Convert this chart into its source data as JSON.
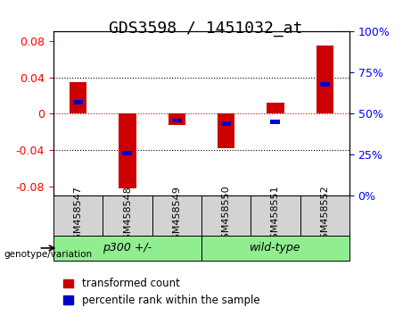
{
  "title": "GDS3598 / 1451032_at",
  "samples": [
    "GSM458547",
    "GSM458548",
    "GSM458549",
    "GSM458550",
    "GSM458551",
    "GSM458552"
  ],
  "transformed_counts": [
    0.035,
    -0.082,
    -0.012,
    -0.038,
    0.012,
    0.075
  ],
  "percentile_ranks": [
    0.57,
    0.26,
    0.46,
    0.44,
    0.45,
    0.68
  ],
  "groups": [
    {
      "label": "p300 +/-",
      "indices": [
        0,
        1,
        2
      ],
      "color": "#90ee90"
    },
    {
      "label": "wild-type",
      "indices": [
        3,
        4,
        5
      ],
      "color": "#90ee90"
    }
  ],
  "group_bg_color": "#90ee90",
  "sample_bg_color": "#d3d3d3",
  "ylim_left": [
    -0.09,
    0.09
  ],
  "ylim_right": [
    0,
    100
  ],
  "yticks_left": [
    -0.08,
    -0.04,
    0,
    0.04,
    0.08
  ],
  "yticks_right": [
    0,
    25,
    50,
    75,
    100
  ],
  "bar_color_red": "#cc0000",
  "bar_color_blue": "#0000cc",
  "bar_width": 0.35,
  "percentile_bar_width": 0.2,
  "title_fontsize": 13,
  "tick_fontsize": 9,
  "label_fontsize": 9,
  "legend_fontsize": 8.5
}
